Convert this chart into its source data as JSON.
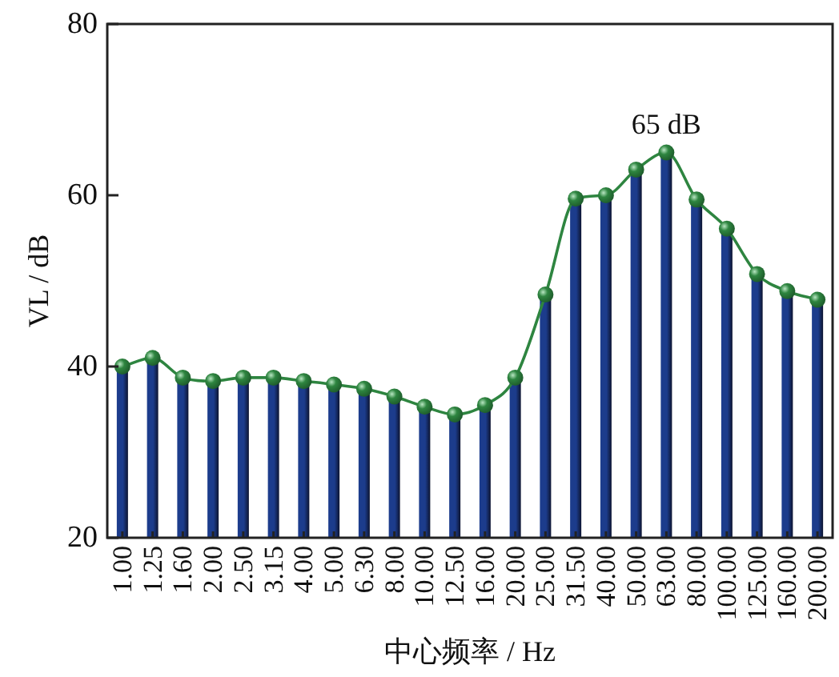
{
  "chart_data": {
    "type": "bar",
    "xlabel": "中心频率 / Hz",
    "ylabel": "VL / dB",
    "categories": [
      "1.00",
      "1.25",
      "1.60",
      "2.00",
      "2.50",
      "3.15",
      "4.00",
      "5.00",
      "6.30",
      "8.00",
      "10.00",
      "12.50",
      "16.00",
      "20.00",
      "25.00",
      "31.50",
      "40.00",
      "50.00",
      "63.00",
      "80.00",
      "100.00",
      "125.00",
      "160.00",
      "200.00"
    ],
    "series": [
      {
        "color": "#1c3c8c",
        "values": [
          40.0,
          41.0,
          38.7,
          38.3,
          38.7,
          38.7,
          38.3,
          37.9,
          37.4,
          36.5,
          35.3,
          34.4,
          35.5,
          38.7,
          48.4,
          59.6,
          60.0,
          63.0,
          65.0,
          59.5,
          56.1,
          50.8,
          48.8,
          47.8
        ]
      },
      {
        "type": "line",
        "color": "#2e8540",
        "values": [
          40.0,
          41.0,
          38.7,
          38.3,
          38.7,
          38.7,
          38.3,
          37.9,
          37.4,
          36.5,
          35.3,
          34.4,
          35.5,
          38.7,
          48.4,
          59.6,
          60.0,
          63.0,
          65.0,
          59.5,
          56.1,
          50.8,
          48.8,
          47.8
        ]
      }
    ],
    "marker": "circle",
    "annotations": [
      {
        "text": "65 dB",
        "x": "63.00",
        "y": 65
      }
    ],
    "ylim": [
      20,
      80
    ],
    "yticks": [
      20,
      40,
      60,
      80
    ],
    "grid": false
  }
}
